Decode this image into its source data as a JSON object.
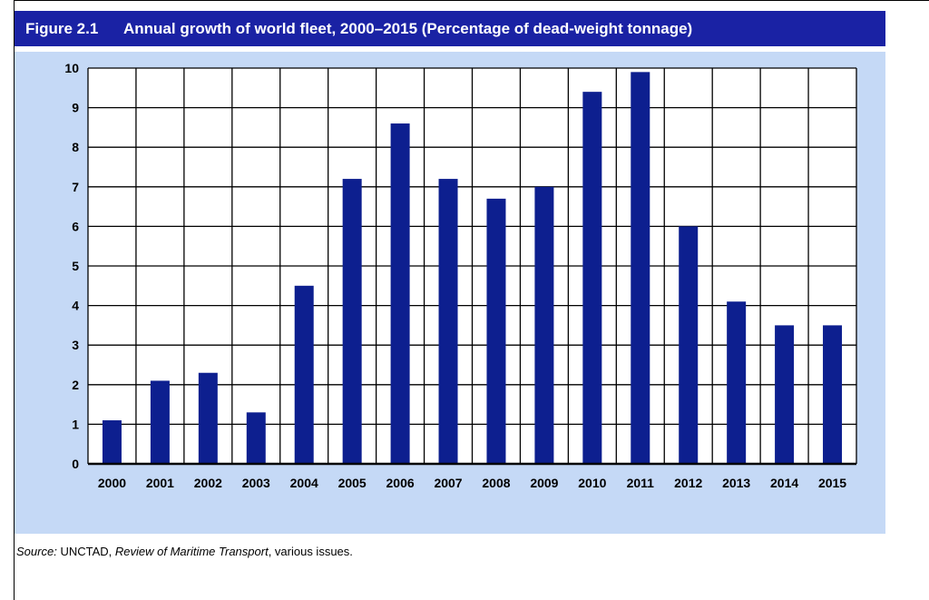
{
  "figure_label": "Figure 2.1",
  "chart_data": {
    "type": "bar",
    "title": "Annual growth of world fleet, 2000–2015 (Percentage of dead-weight tonnage)",
    "categories": [
      "2000",
      "2001",
      "2002",
      "2003",
      "2004",
      "2005",
      "2006",
      "2007",
      "2008",
      "2009",
      "2010",
      "2011",
      "2012",
      "2013",
      "2014",
      "2015"
    ],
    "values": [
      1.1,
      2.1,
      2.3,
      1.3,
      4.5,
      7.2,
      8.6,
      7.2,
      6.7,
      7.0,
      9.4,
      9.9,
      6.0,
      4.1,
      3.5,
      3.5
    ],
    "ylim": [
      0,
      10
    ],
    "yticks": [
      "0",
      "1",
      "2",
      "3",
      "4",
      "5",
      "6",
      "7",
      "8",
      "9",
      "10"
    ],
    "xlabel": "",
    "ylabel": "",
    "grid": true,
    "bar_color": "#0d1f8f"
  },
  "source": {
    "label": "Source:",
    "org": "UNCTAD,",
    "publication": "Review of Maritime Transport",
    "rest": ", various issues."
  }
}
